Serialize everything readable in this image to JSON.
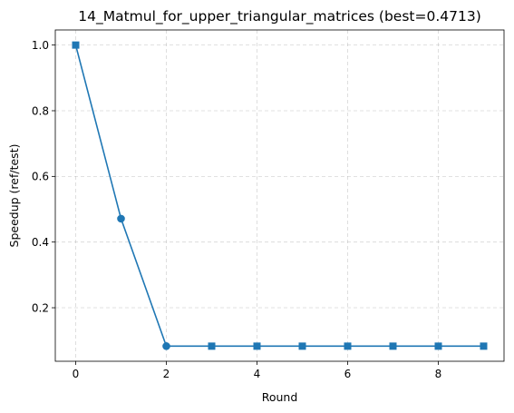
{
  "chart_data": {
    "type": "line",
    "title": "14_Matmul_for_upper_triangular_matrices (best=0.4713)",
    "xlabel": "Round",
    "ylabel": "Speedup (ref/test)",
    "x": [
      0,
      1,
      2,
      3,
      4,
      5,
      6,
      7,
      8,
      9
    ],
    "series": [
      {
        "values": [
          1.0,
          0.4713,
          0.083,
          0.083,
          0.083,
          0.083,
          0.083,
          0.083,
          0.083,
          0.083
        ],
        "color": "#1f77b4",
        "markers": [
          "square",
          "circle",
          "circle",
          "square",
          "square",
          "square",
          "square",
          "square",
          "square",
          "square"
        ]
      }
    ],
    "xlim": [
      -0.45,
      9.45
    ],
    "ylim": [
      0.037,
      1.046
    ],
    "xticks": [
      0,
      2,
      4,
      6,
      8
    ],
    "yticks": [
      0.2,
      0.4,
      0.6,
      0.8,
      1.0
    ],
    "xtick_labels": [
      "0",
      "2",
      "4",
      "6",
      "8"
    ],
    "ytick_labels": [
      "0.2",
      "0.4",
      "0.6",
      "0.8",
      "1.0"
    ],
    "grid": true,
    "legend": "none"
  }
}
